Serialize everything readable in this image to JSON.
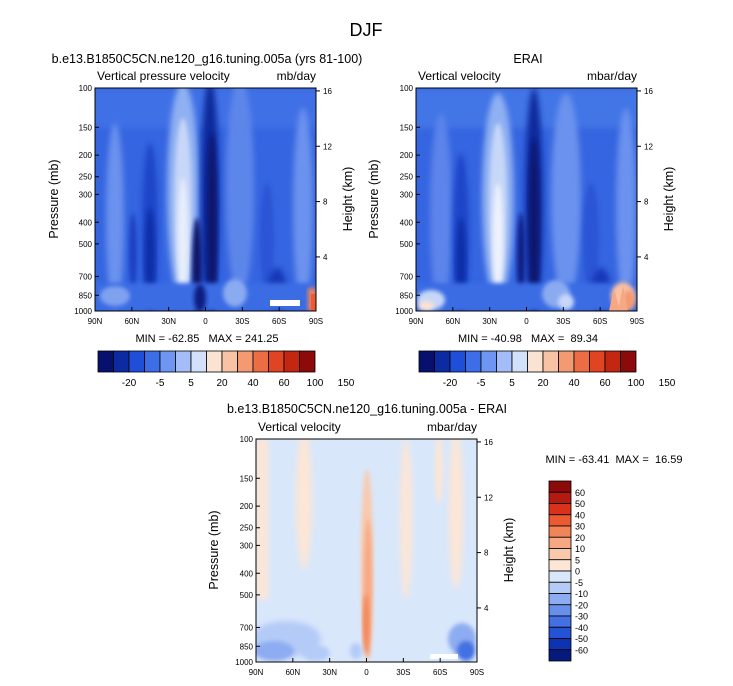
{
  "figure_title": "DJF",
  "chart_data": [
    {
      "type": "heatmap",
      "title": "b.e13.B1850C5CN.ne120_g16.tuning.005a (yrs 81-100)",
      "left_label": "Vertical pressure velocity",
      "right_label": "mb/day",
      "xlabel": "",
      "ylabel": "Pressure (mb)",
      "ylabel_right": "Height (km)",
      "x_ticks": [
        "90N",
        "60N",
        "30N",
        "0",
        "30S",
        "60S",
        "90S"
      ],
      "y_ticks": [
        "100",
        "150",
        "200",
        "250",
        "300",
        "400",
        "500",
        "700",
        "850",
        "1000"
      ],
      "height_ticks": [
        "4",
        "8",
        "12",
        "16"
      ],
      "xlim": [
        90,
        -90
      ],
      "ylim": [
        1000,
        100
      ],
      "stats": "MIN = -62.85   MAX = 241.25",
      "colorbar_labels": [
        "-20",
        "-5",
        "5",
        "20",
        "40",
        "60",
        "100",
        "150"
      ],
      "colorbar_colors": [
        "#08106e",
        "#0c2ba3",
        "#1f4fd8",
        "#3d6ee8",
        "#6e95f2",
        "#a4bcf7",
        "#d3e0fa",
        "#fbe3d3",
        "#f8c2a4",
        "#f39a72",
        "#ec6d43",
        "#e14422",
        "#c32711",
        "#8d0a0a"
      ],
      "field": "model"
    },
    {
      "type": "heatmap",
      "title": "ERAI",
      "left_label": "Vertical velocity",
      "right_label": "mbar/day",
      "xlabel": "",
      "ylabel": "Pressure (mb)",
      "ylabel_right": "Height (km)",
      "x_ticks": [
        "90N",
        "60N",
        "30N",
        "0",
        "30S",
        "60S",
        "90S"
      ],
      "y_ticks": [
        "100",
        "150",
        "200",
        "250",
        "300",
        "400",
        "500",
        "700",
        "850",
        "1000"
      ],
      "height_ticks": [
        "4",
        "8",
        "12",
        "16"
      ],
      "xlim": [
        90,
        -90
      ],
      "ylim": [
        1000,
        100
      ],
      "stats": "MIN = -40.98   MAX =  89.34",
      "colorbar_labels": [
        "-20",
        "-5",
        "5",
        "20",
        "40",
        "60",
        "100",
        "150"
      ],
      "colorbar_colors": [
        "#08106e",
        "#0c2ba3",
        "#1f4fd8",
        "#3d6ee8",
        "#6e95f2",
        "#a4bcf7",
        "#d3e0fa",
        "#fbe3d3",
        "#f8c2a4",
        "#f39a72",
        "#ec6d43",
        "#e14422",
        "#c32711",
        "#8d0a0a"
      ],
      "field": "obs"
    },
    {
      "type": "heatmap",
      "title": "b.e13.B1850C5CN.ne120_g16.tuning.005a - ERAI",
      "left_label": "Vertical velocity",
      "right_label": "mbar/day",
      "xlabel": "",
      "ylabel": "Pressure (mb)",
      "ylabel_right": "Height (km)",
      "x_ticks": [
        "90N",
        "60N",
        "30N",
        "0",
        "30S",
        "60S",
        "90S"
      ],
      "y_ticks": [
        "100",
        "150",
        "200",
        "250",
        "300",
        "400",
        "500",
        "700",
        "850",
        "1000"
      ],
      "height_ticks": [
        "4",
        "8",
        "12",
        "16"
      ],
      "xlim": [
        90,
        -90
      ],
      "ylim": [
        1000,
        100
      ],
      "stats": "MIN = -63.41  MAX =  16.59",
      "colorbar_labels": [
        "60",
        "50",
        "40",
        "30",
        "20",
        "10",
        "5",
        "0",
        "-5",
        "-10",
        "-20",
        "-30",
        "-40",
        "-50",
        "-60"
      ],
      "colorbar_colors": [
        "#8d0a0a",
        "#b41a10",
        "#d8321a",
        "#ec5a33",
        "#f2845a",
        "#f6a883",
        "#f9c9ab",
        "#fde6d6",
        "#d9e7fb",
        "#b4cbf7",
        "#8eacf1",
        "#6890ea",
        "#4371e3",
        "#2553d6",
        "#0d33b4",
        "#061a7d"
      ],
      "field": "diff"
    }
  ]
}
